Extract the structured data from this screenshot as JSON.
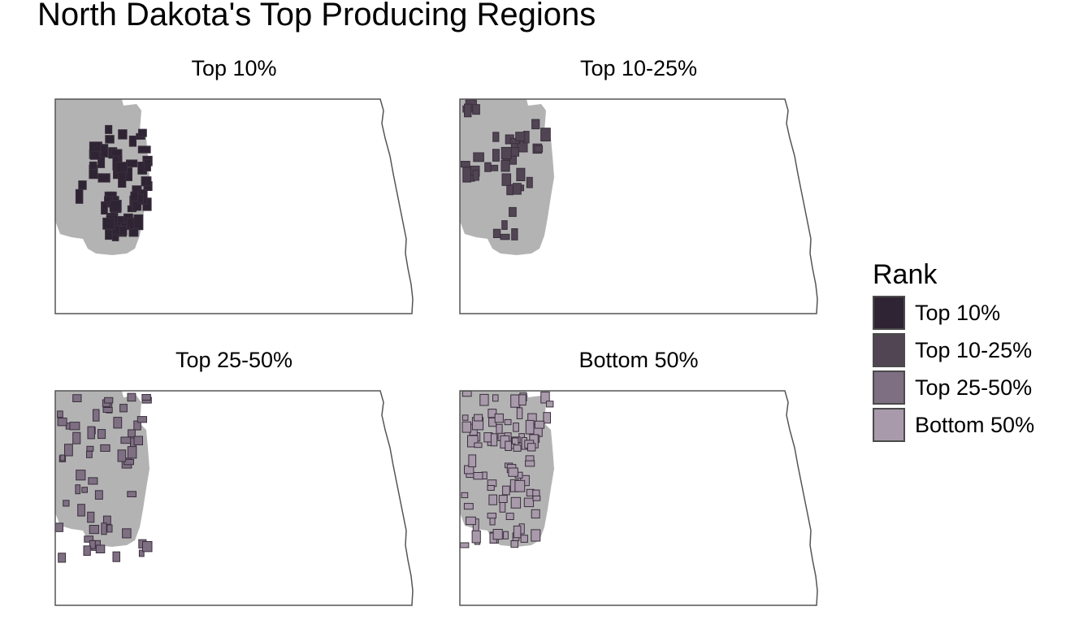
{
  "title": "North Dakota's Top Producing Regions",
  "panels": [
    {
      "key": "top10",
      "title": "Top 10%",
      "fill": "#2f2433"
    },
    {
      "key": "top10_25",
      "title": "Top 10-25%",
      "fill": "#514554"
    },
    {
      "key": "top25_50",
      "title": "Top 25-50%",
      "fill": "#7e6f82"
    },
    {
      "key": "bottom50",
      "title": "Bottom 50%",
      "fill": "#a89aab"
    }
  ],
  "legend": {
    "title": "Rank",
    "items": [
      {
        "label": "Top 10%",
        "color": "#2f2433"
      },
      {
        "label": "Top 10-25%",
        "color": "#514554"
      },
      {
        "label": "Top 25-50%",
        "color": "#7e6f82"
      },
      {
        "label": "Bottom 50%",
        "color": "#a89aab"
      }
    ]
  },
  "colors": {
    "background_region": "#b3b3b3",
    "state_outline": "#555555"
  }
}
